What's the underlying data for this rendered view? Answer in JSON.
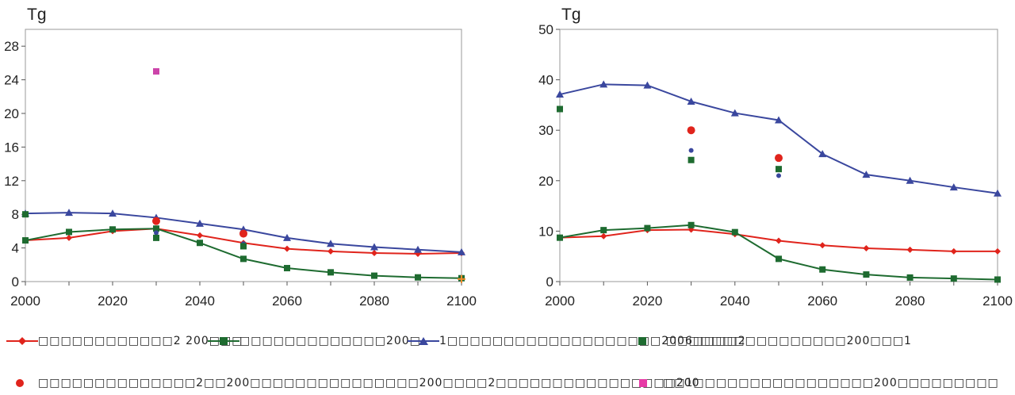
{
  "chart_data": [
    {
      "type": "line",
      "title": "",
      "ylabel": "Tg",
      "xlabel": "",
      "xlim": [
        2000,
        2100
      ],
      "ylim": [
        0,
        30
      ],
      "yticks": [
        0,
        4,
        8,
        12,
        16,
        20,
        24,
        28
      ],
      "xticks": [
        2000,
        2020,
        2040,
        2060,
        2080,
        2100
      ],
      "grid": false,
      "series": [
        {
          "color": "#e0241c",
          "marker": "diamond",
          "x": [
            2000,
            2010,
            2020,
            2030,
            2040,
            2050,
            2060,
            2070,
            2080,
            2090,
            2100
          ],
          "y": [
            4.9,
            5.2,
            6.0,
            6.3,
            5.5,
            4.6,
            3.9,
            3.6,
            3.4,
            3.3,
            3.4
          ]
        },
        {
          "color": "#1e6b30",
          "marker": "square",
          "x": [
            2000,
            2010,
            2020,
            2030,
            2040,
            2050,
            2060,
            2070,
            2080,
            2090,
            2100
          ],
          "y": [
            4.9,
            5.9,
            6.2,
            6.3,
            4.6,
            2.7,
            1.6,
            1.1,
            0.7,
            0.5,
            0.4
          ]
        },
        {
          "color": "#3a479e",
          "marker": "triangle",
          "x": [
            2000,
            2010,
            2020,
            2030,
            2040,
            2050,
            2060,
            2070,
            2080,
            2090,
            2100
          ],
          "y": [
            8.1,
            8.2,
            8.1,
            7.6,
            6.9,
            6.2,
            5.2,
            4.5,
            4.1,
            3.8,
            3.5
          ]
        }
      ],
      "points": [
        {
          "color": "#1e6b30",
          "marker": "square",
          "x": 2000,
          "y": 8.0
        },
        {
          "color": "#e0241c",
          "marker": "circle",
          "x": 2030,
          "y": 7.2
        },
        {
          "color": "#3a479e",
          "marker": "circle-small",
          "x": 2030,
          "y": 5.8
        },
        {
          "color": "#1e6b30",
          "marker": "square",
          "x": 2030,
          "y": 5.2
        },
        {
          "color": "#cc44aa",
          "marker": "square",
          "x": 2030,
          "y": 25.0
        },
        {
          "color": "#e0241c",
          "marker": "circle",
          "x": 2050,
          "y": 5.7
        },
        {
          "color": "#3a479e",
          "marker": "circle-small",
          "x": 2050,
          "y": 4.5
        },
        {
          "color": "#1e6b30",
          "marker": "square",
          "x": 2050,
          "y": 4.2
        },
        {
          "color": "#f28a2a",
          "marker": "cross",
          "x": 2100,
          "y": 0.3
        }
      ]
    },
    {
      "type": "line",
      "title": "",
      "ylabel": "Tg",
      "xlabel": "",
      "xlim": [
        2000,
        2100
      ],
      "ylim": [
        0,
        50
      ],
      "yticks": [
        0,
        10,
        20,
        30,
        40,
        50
      ],
      "xticks": [
        2000,
        2020,
        2040,
        2060,
        2080,
        2100
      ],
      "grid": false,
      "series": [
        {
          "color": "#e0241c",
          "marker": "diamond",
          "x": [
            2000,
            2010,
            2020,
            2030,
            2040,
            2050,
            2060,
            2070,
            2080,
            2090,
            2100
          ],
          "y": [
            8.7,
            9.0,
            10.2,
            10.3,
            9.4,
            8.1,
            7.2,
            6.6,
            6.3,
            6.0,
            6.0
          ]
        },
        {
          "color": "#1e6b30",
          "marker": "square",
          "x": [
            2000,
            2010,
            2020,
            2030,
            2040,
            2050,
            2060,
            2070,
            2080,
            2090,
            2100
          ],
          "y": [
            8.7,
            10.2,
            10.6,
            11.2,
            9.8,
            4.5,
            2.4,
            1.4,
            0.8,
            0.6,
            0.4
          ]
        },
        {
          "color": "#3a479e",
          "marker": "triangle",
          "x": [
            2000,
            2010,
            2020,
            2030,
            2040,
            2050,
            2060,
            2070,
            2080,
            2090,
            2100
          ],
          "y": [
            37.1,
            39.1,
            38.9,
            35.7,
            33.4,
            32.0,
            25.3,
            21.2,
            20.0,
            18.7,
            17.5
          ]
        }
      ],
      "points": [
        {
          "color": "#1e6b30",
          "marker": "square",
          "x": 2000,
          "y": 34.2
        },
        {
          "color": "#e0241c",
          "marker": "circle",
          "x": 2030,
          "y": 30.0
        },
        {
          "color": "#3a479e",
          "marker": "circle-small",
          "x": 2030,
          "y": 26.0
        },
        {
          "color": "#1e6b30",
          "marker": "square",
          "x": 2030,
          "y": 24.1
        },
        {
          "color": "#e0241c",
          "marker": "circle",
          "x": 2050,
          "y": 24.5
        },
        {
          "color": "#3a479e",
          "marker": "circle-small",
          "x": 2050,
          "y": 21.0
        },
        {
          "color": "#1e6b30",
          "marker": "square",
          "x": 2050,
          "y": 22.3
        }
      ]
    }
  ],
  "legend": {
    "row1": [
      {
        "color": "#e0241c",
        "marker": "diamond",
        "line": true,
        "label": "□□□□□□□□□□□□2 200□□□"
      },
      {
        "color": "#1e6b30",
        "marker": "square",
        "line": true,
        "label": "□□□□□□□□□□□□□200□"
      },
      {
        "color": "#3a479e",
        "marker": "triangle",
        "line": true,
        "label": "1□□□□□□□□□□□□□□□□□□□2006□□□□2"
      },
      {
        "color": "#1e6b30",
        "marker": "square",
        "line": false,
        "label": "□□□□□□□□□□□□□□□□200□□□1"
      }
    ],
    "row2": [
      {
        "color": "#e0241c",
        "marker": "circle",
        "line": false,
        "label": "□□□□□□□□□□□□□□2□□200□□□□□□□□□□□□□□□200□□□□2□□□□□□□□□□□□□□□□200"
      },
      {
        "color": "#cc44aa",
        "marker": "square",
        "line": false,
        "label": "□□1□□□□□□□□□□□□□□□□200□□□□□□□□□"
      }
    ]
  }
}
